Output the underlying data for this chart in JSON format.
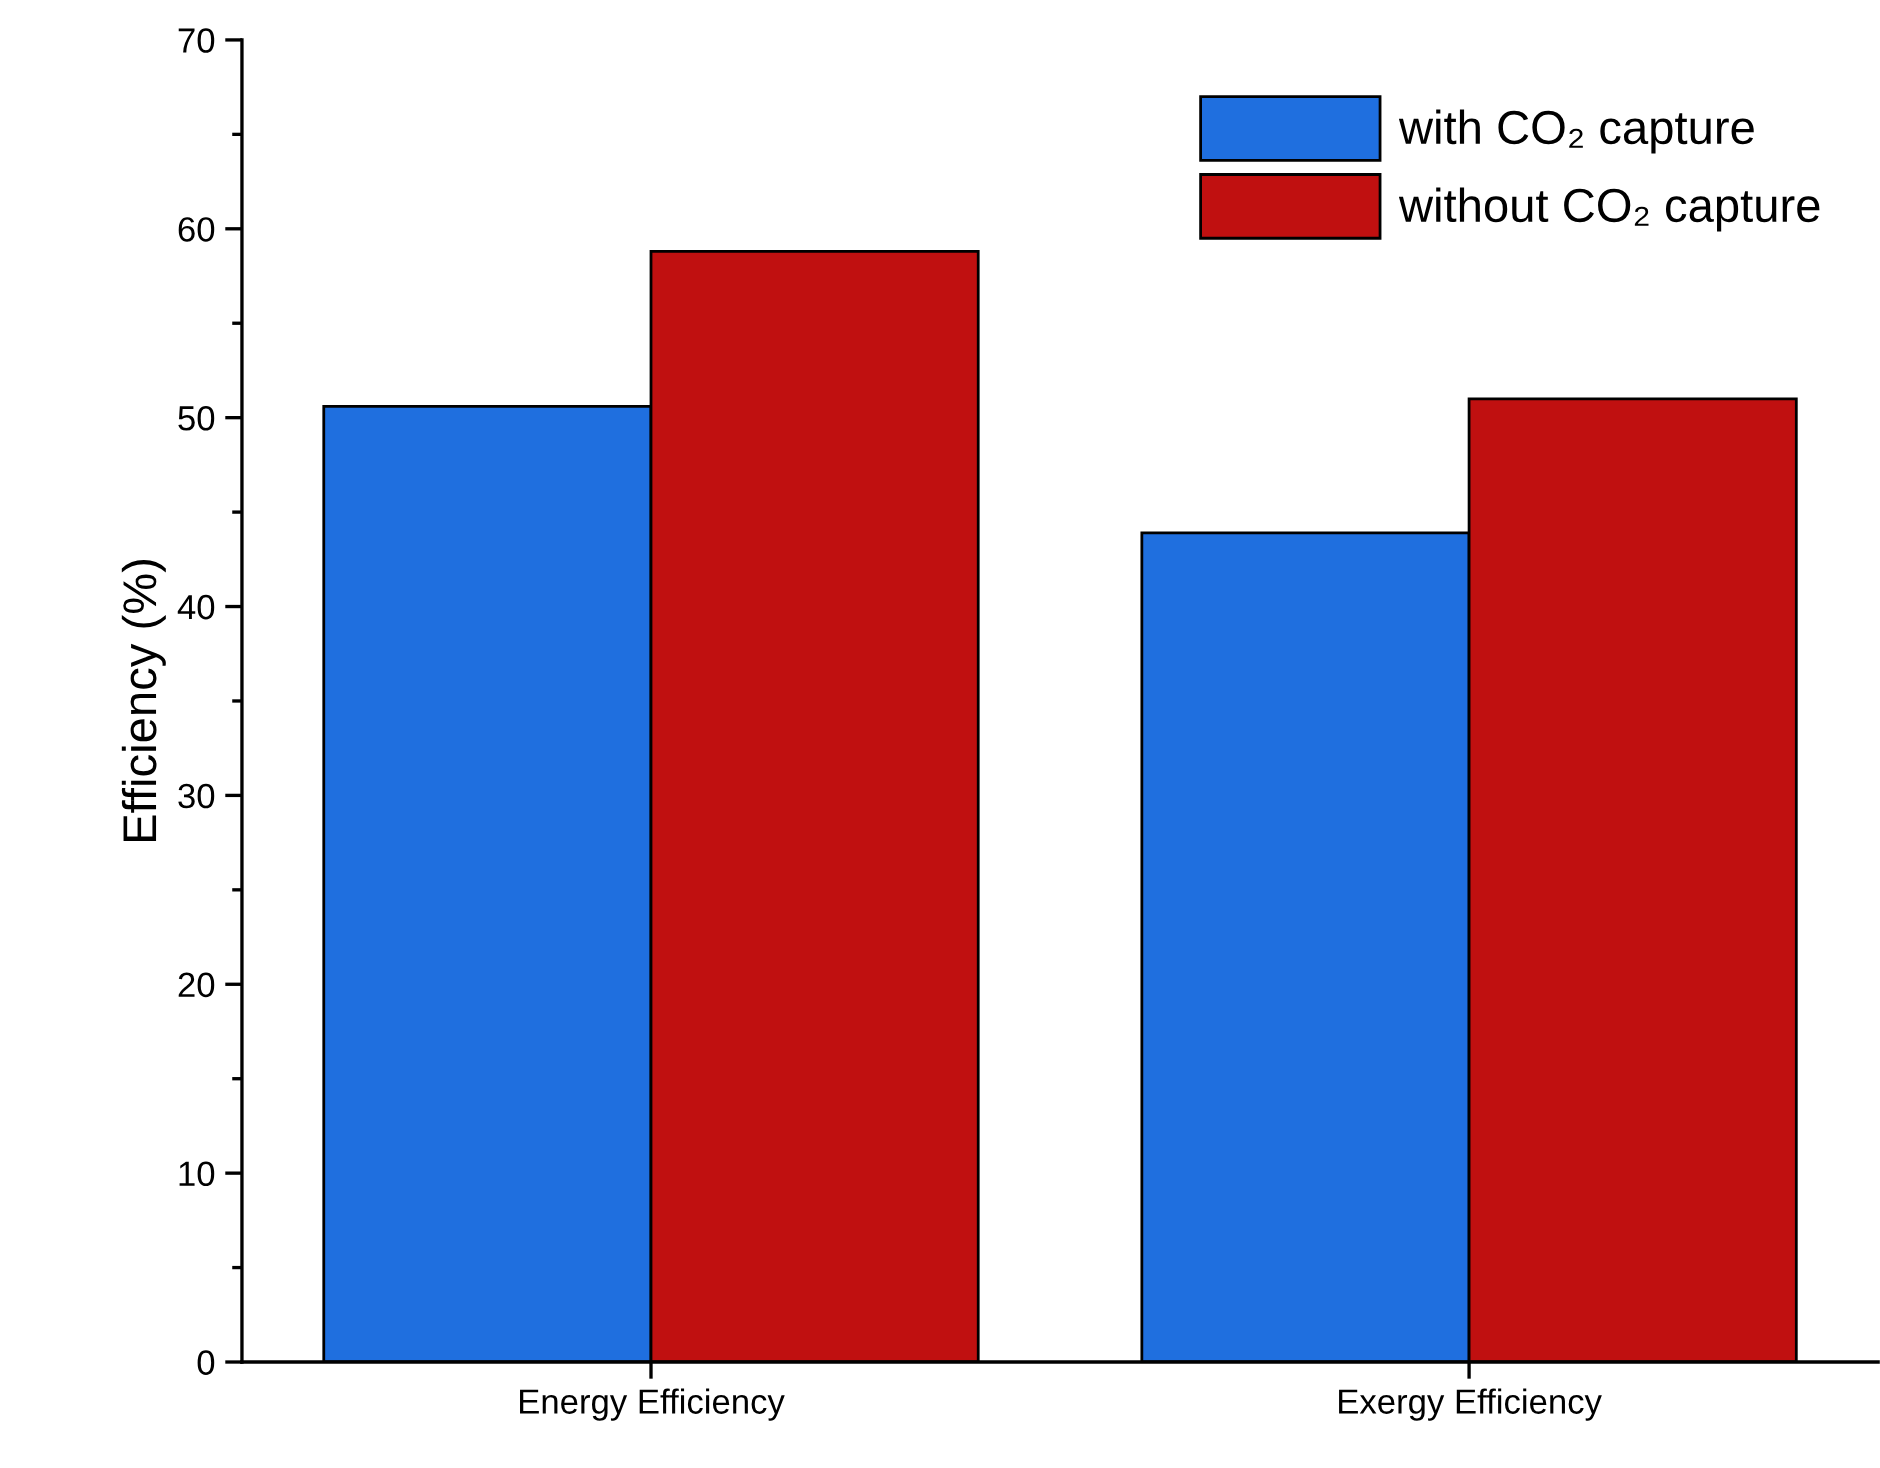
{
  "chart_data": {
    "type": "bar",
    "ylabel": "Efficiency (%)",
    "categories": [
      "Energy Efficiency",
      "Exergy Efficiency"
    ],
    "series": [
      {
        "name": "with CO₂ capture",
        "color": "#1f6fdf",
        "values": [
          50.6,
          43.9
        ]
      },
      {
        "name": "without CO₂ capture",
        "color": "#c01010",
        "values": [
          58.8,
          51.0
        ]
      }
    ],
    "ylim": [
      0,
      70
    ],
    "yticks": [
      0,
      {
        "value": 5,
        "label": null
      },
      10,
      {
        "value": 15,
        "label": null
      },
      20,
      {
        "value": 25,
        "label": null
      },
      30,
      {
        "value": 35,
        "label": null
      },
      40,
      {
        "value": 45,
        "label": null
      },
      50,
      {
        "value": 55,
        "label": null
      },
      60,
      {
        "value": 65,
        "label": null
      },
      70
    ],
    "grid": false,
    "legend": "top right"
  }
}
